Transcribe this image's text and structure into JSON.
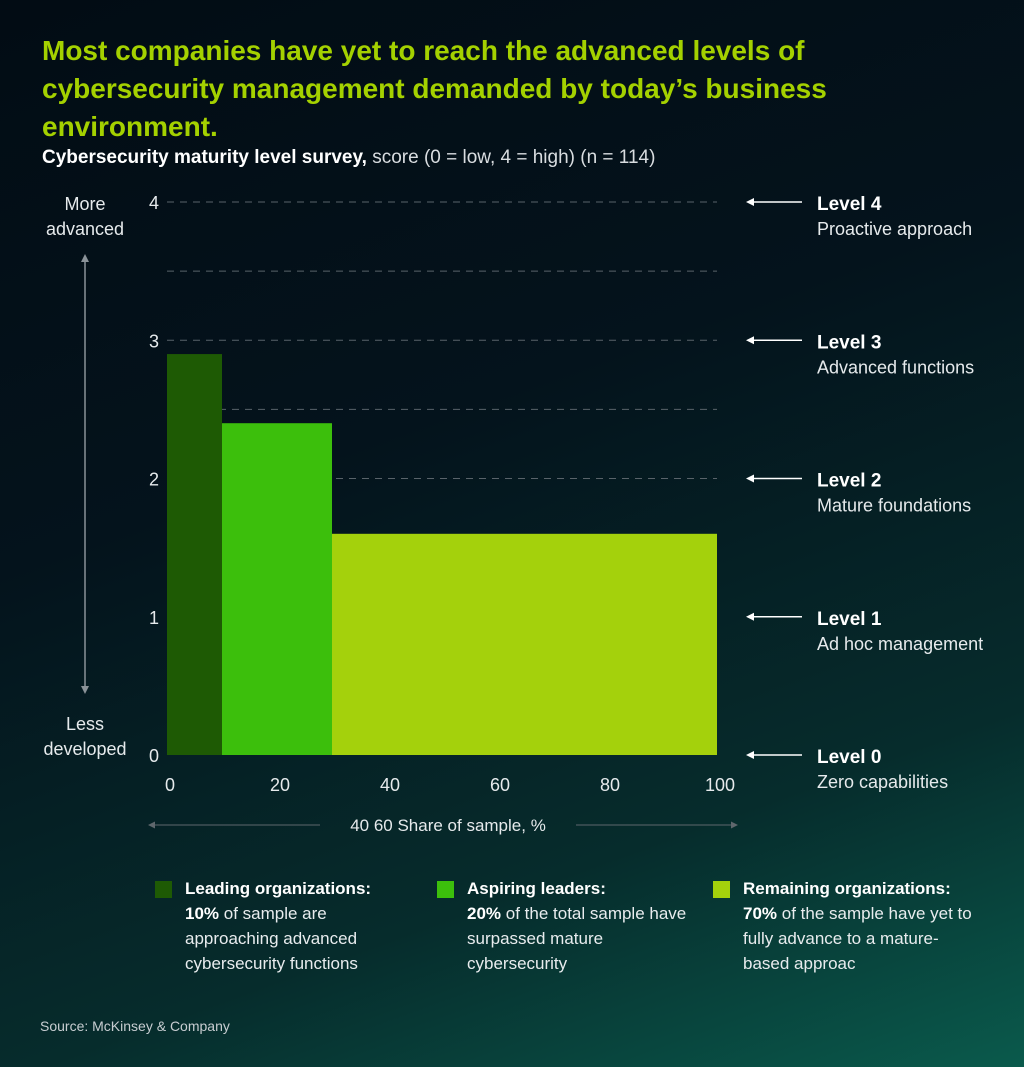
{
  "headline": "Most companies have yet to reach the advanced levels of cybersecurity management demanded by today’s business environment.",
  "subtitle": {
    "bold": "Cybersecurity maturity level survey,",
    "rest": " score (0 = low, 4 = high) (n = 114)"
  },
  "axis": {
    "y_top_label": [
      "More",
      "advanced"
    ],
    "y_bottom_label": [
      "Less",
      "developed"
    ],
    "x_label": "40 60 Share of sample, %"
  },
  "chart_data": {
    "type": "bar",
    "xlabel": "40 60 Share of sample, %",
    "ylabel": "",
    "xlim": [
      0,
      100
    ],
    "ylim": [
      0,
      4
    ],
    "x_ticks": [
      0,
      20,
      40,
      60,
      80,
      100
    ],
    "y_ticks": [
      0,
      1,
      2,
      3,
      4
    ],
    "grid_y": [
      2,
      2.5,
      3,
      3.5,
      4
    ],
    "segments": [
      {
        "name": "Leading organizations",
        "x_start": 0,
        "x_end": 10,
        "value": 2.9,
        "color": "#1e5a04"
      },
      {
        "name": "Aspiring leaders",
        "x_start": 10,
        "x_end": 30,
        "value": 2.4,
        "color": "#3cbf0c"
      },
      {
        "name": "Remaining organizations",
        "x_start": 30,
        "x_end": 100,
        "value": 1.6,
        "color": "#a4d10c"
      }
    ],
    "level_labels": [
      {
        "level": 4,
        "title": "Level 4",
        "desc": "Proactive approach"
      },
      {
        "level": 3,
        "title": "Level 3",
        "desc": "Advanced functions"
      },
      {
        "level": 2,
        "title": "Level 2",
        "desc": "Mature foundations"
      },
      {
        "level": 1,
        "title": "Level 1",
        "desc": "Ad hoc management"
      },
      {
        "level": 0,
        "title": "Level 0",
        "desc": "Zero capabilities"
      }
    ]
  },
  "legend": [
    {
      "title": "Leading organizations:",
      "pct": "10%",
      "text": " of sample are approaching advanced cybersecurity functions",
      "color": "#1e5a04"
    },
    {
      "title": "Aspiring leaders:",
      "pct": "20%",
      "text": " of the total sample have surpassed mature cybersecurity",
      "color": "#3cbf0c"
    },
    {
      "title": "Remaining organizations:",
      "pct": "70%",
      "text": " of the sample have yet to fully advance to a mature-based approac",
      "color": "#a4d10c"
    }
  ],
  "source": "Source: McKinsey & Company"
}
